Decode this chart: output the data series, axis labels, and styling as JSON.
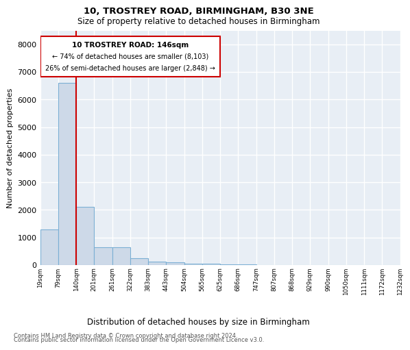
{
  "title_line1": "10, TROSTREY ROAD, BIRMINGHAM, B30 3NE",
  "title_line2": "Size of property relative to detached houses in Birmingham",
  "xlabel": "Distribution of detached houses by size in Birmingham",
  "ylabel": "Number of detached properties",
  "tick_labels": [
    "19sqm",
    "79sqm",
    "140sqm",
    "201sqm",
    "261sqm",
    "322sqm",
    "383sqm",
    "443sqm",
    "504sqm",
    "565sqm",
    "625sqm",
    "686sqm",
    "747sqm",
    "807sqm",
    "868sqm",
    "929sqm",
    "990sqm",
    "1050sqm",
    "1111sqm",
    "1172sqm",
    "1232sqm"
  ],
  "bar_heights": [
    1300,
    6600,
    2100,
    650,
    650,
    250,
    130,
    100,
    60,
    50,
    30,
    15,
    10,
    5,
    3,
    2,
    1,
    1,
    1,
    1
  ],
  "bar_color": "#cdd9e8",
  "bar_edge_color": "#7bafd4",
  "highlight_bar_index": 2,
  "annotation_title": "10 TROSTREY ROAD: 146sqm",
  "annotation_line1": "← 74% of detached houses are smaller (8,103)",
  "annotation_line2": "26% of semi-detached houses are larger (2,848) →",
  "annotation_box_color": "#cc0000",
  "ylim": [
    0,
    8500
  ],
  "yticks": [
    0,
    1000,
    2000,
    3000,
    4000,
    5000,
    6000,
    7000,
    8000
  ],
  "background_color": "#e8eef5",
  "grid_color": "#ffffff",
  "footnote_line1": "Contains HM Land Registry data © Crown copyright and database right 2024.",
  "footnote_line2": "Contains public sector information licensed under the Open Government Licence v3.0."
}
